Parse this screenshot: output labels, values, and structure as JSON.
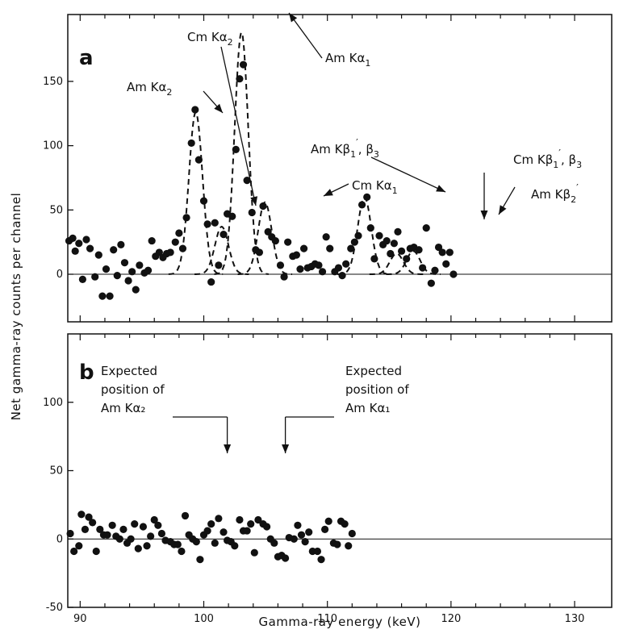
{
  "chart_data": [
    {
      "panel": "a",
      "type": "scatter",
      "xlabel": "Gamma-ray energy (keV)",
      "ylabel": "Net gamma-ray counts per channel",
      "xlim": [
        89,
        133
      ],
      "ylim": [
        -37,
        202
      ],
      "x_ticks": [
        90,
        100,
        110,
        120,
        130
      ],
      "y_ticks": [
        0,
        50,
        100,
        150
      ],
      "points": [
        [
          89.1,
          26
        ],
        [
          89.4,
          28
        ],
        [
          89.6,
          18
        ],
        [
          89.9,
          24
        ],
        [
          90.2,
          -4
        ],
        [
          90.5,
          27
        ],
        [
          90.8,
          20
        ],
        [
          91.2,
          -2
        ],
        [
          91.5,
          15
        ],
        [
          91.8,
          -17
        ],
        [
          92.1,
          4
        ],
        [
          92.4,
          -17
        ],
        [
          92.7,
          19
        ],
        [
          93.0,
          -1
        ],
        [
          93.3,
          23
        ],
        [
          93.6,
          9
        ],
        [
          93.9,
          -5
        ],
        [
          94.2,
          2
        ],
        [
          94.5,
          -12
        ],
        [
          94.8,
          7
        ],
        [
          95.2,
          1
        ],
        [
          95.5,
          3
        ],
        [
          95.8,
          26
        ],
        [
          96.1,
          14
        ],
        [
          96.4,
          17
        ],
        [
          96.7,
          13
        ],
        [
          97.0,
          16
        ],
        [
          97.3,
          17
        ],
        [
          97.7,
          25
        ],
        [
          98.0,
          32
        ],
        [
          98.3,
          20
        ],
        [
          98.6,
          44
        ],
        [
          99.0,
          102
        ],
        [
          99.3,
          128
        ],
        [
          99.6,
          89
        ],
        [
          100.0,
          57
        ],
        [
          100.3,
          39
        ],
        [
          100.6,
          -6
        ],
        [
          100.9,
          40
        ],
        [
          101.2,
          7
        ],
        [
          101.6,
          31
        ],
        [
          101.9,
          47
        ],
        [
          102.3,
          45
        ],
        [
          102.6,
          97
        ],
        [
          102.9,
          152
        ],
        [
          103.2,
          163
        ],
        [
          103.5,
          73
        ],
        [
          103.9,
          48
        ],
        [
          104.2,
          19
        ],
        [
          104.5,
          17
        ],
        [
          104.8,
          53
        ],
        [
          105.2,
          33
        ],
        [
          105.5,
          29
        ],
        [
          105.8,
          26
        ],
        [
          106.2,
          7
        ],
        [
          106.5,
          -2
        ],
        [
          106.8,
          25
        ],
        [
          107.2,
          14
        ],
        [
          107.5,
          15
        ],
        [
          107.8,
          4
        ],
        [
          108.1,
          20
        ],
        [
          108.4,
          5
        ],
        [
          108.7,
          6
        ],
        [
          109.0,
          8
        ],
        [
          109.3,
          7
        ],
        [
          109.6,
          2
        ],
        [
          109.9,
          29
        ],
        [
          110.2,
          20
        ],
        [
          110.6,
          2
        ],
        [
          110.9,
          5
        ],
        [
          111.2,
          -1
        ],
        [
          111.5,
          8
        ],
        [
          111.9,
          20
        ],
        [
          112.2,
          25
        ],
        [
          112.5,
          30
        ],
        [
          112.8,
          54
        ],
        [
          113.2,
          60
        ],
        [
          113.5,
          36
        ],
        [
          113.8,
          12
        ],
        [
          114.2,
          30
        ],
        [
          114.5,
          23
        ],
        [
          114.8,
          26
        ],
        [
          115.1,
          16
        ],
        [
          115.4,
          24
        ],
        [
          115.7,
          33
        ],
        [
          116.0,
          18
        ],
        [
          116.4,
          12
        ],
        [
          116.7,
          20
        ],
        [
          117.0,
          21
        ],
        [
          117.4,
          19
        ],
        [
          117.7,
          5
        ],
        [
          118.0,
          36
        ],
        [
          118.4,
          -7
        ],
        [
          118.7,
          3
        ],
        [
          119.0,
          21
        ],
        [
          119.3,
          17
        ],
        [
          119.6,
          8
        ],
        [
          119.9,
          17
        ],
        [
          120.2,
          0
        ]
      ],
      "dashed_fits": [
        {
          "name": "Am Kα2",
          "center": 99.35,
          "peak": 126
        },
        {
          "name": "Cm Kα2",
          "center": 101.45,
          "peak": 37
        },
        {
          "name": "Am Kα1",
          "center": 103.05,
          "peak": 188
        },
        {
          "name": "Cm Kα1",
          "center": 104.95,
          "peak": 56
        },
        {
          "name": "Am Kβ1′, β3",
          "center": 113.0,
          "peak": 60
        },
        {
          "name": "Cm Kβ1′, β3",
          "center": 115.6,
          "peak": 16
        },
        {
          "name": "Am Kβ2′",
          "center": 116.95,
          "peak": 18
        }
      ]
    },
    {
      "panel": "b",
      "type": "scatter",
      "xlabel": "Gamma-ray energy (keV)",
      "ylabel": "Net gamma-ray counts per channel",
      "xlim": [
        89,
        133
      ],
      "ylim": [
        -50,
        150
      ],
      "x_ticks": [
        90,
        100,
        110,
        120,
        130
      ],
      "y_ticks": [
        -50,
        0,
        50,
        100
      ],
      "points": [
        [
          89.2,
          4
        ],
        [
          89.5,
          -9
        ],
        [
          89.9,
          -5
        ],
        [
          90.1,
          18
        ],
        [
          90.4,
          7
        ],
        [
          90.7,
          16
        ],
        [
          91.0,
          12
        ],
        [
          91.3,
          -9
        ],
        [
          91.6,
          7
        ],
        [
          91.9,
          3
        ],
        [
          92.2,
          3
        ],
        [
          92.6,
          10
        ],
        [
          92.9,
          2
        ],
        [
          93.2,
          0
        ],
        [
          93.5,
          7
        ],
        [
          93.8,
          -3
        ],
        [
          94.1,
          0
        ],
        [
          94.4,
          11
        ],
        [
          94.7,
          -7
        ],
        [
          95.1,
          9
        ],
        [
          95.4,
          -5
        ],
        [
          95.7,
          2
        ],
        [
          96.0,
          14
        ],
        [
          96.3,
          10
        ],
        [
          96.6,
          4
        ],
        [
          96.9,
          -1
        ],
        [
          97.3,
          -2
        ],
        [
          97.6,
          -4
        ],
        [
          97.9,
          -4
        ],
        [
          98.2,
          -9
        ],
        [
          98.5,
          17
        ],
        [
          98.8,
          3
        ],
        [
          99.1,
          0
        ],
        [
          99.4,
          -2
        ],
        [
          99.7,
          -15
        ],
        [
          100.0,
          3
        ],
        [
          100.3,
          6
        ],
        [
          100.6,
          11
        ],
        [
          100.9,
          -3
        ],
        [
          101.2,
          15
        ],
        [
          101.6,
          5
        ],
        [
          101.9,
          -1
        ],
        [
          102.2,
          -2
        ],
        [
          102.5,
          -5
        ],
        [
          102.9,
          14
        ],
        [
          103.2,
          6
        ],
        [
          103.5,
          6
        ],
        [
          103.8,
          11
        ],
        [
          104.1,
          -10
        ],
        [
          104.4,
          14
        ],
        [
          104.8,
          11
        ],
        [
          105.1,
          9
        ],
        [
          105.4,
          0
        ],
        [
          105.7,
          -3
        ],
        [
          106.0,
          -13
        ],
        [
          106.3,
          -12
        ],
        [
          106.6,
          -14
        ],
        [
          106.9,
          1
        ],
        [
          107.3,
          0
        ],
        [
          107.6,
          10
        ],
        [
          107.9,
          3
        ],
        [
          108.2,
          -2
        ],
        [
          108.5,
          5
        ],
        [
          108.8,
          -9
        ],
        [
          109.2,
          -9
        ],
        [
          109.5,
          -15
        ],
        [
          109.8,
          7
        ],
        [
          110.1,
          13
        ],
        [
          110.5,
          -3
        ],
        [
          110.8,
          -4
        ],
        [
          111.1,
          13
        ],
        [
          111.4,
          11
        ],
        [
          111.7,
          -5
        ],
        [
          112.0,
          4
        ]
      ],
      "arrow_positions": [
        101.9,
        106.6
      ]
    }
  ],
  "panel_a": {
    "letter": "a",
    "annotations": [
      {
        "key": "am_ka2",
        "pre": "Am  K",
        "greek": "α",
        "sub": "2",
        "sup": "",
        "post": ""
      },
      {
        "key": "cm_ka2",
        "pre": "Cm  K",
        "greek": "α",
        "sub": "2",
        "sup": "",
        "post": ""
      },
      {
        "key": "am_ka1",
        "pre": "Am  K",
        "greek": "α",
        "sub": "1",
        "sup": "",
        "post": ""
      },
      {
        "key": "cm_ka1",
        "pre": "Cm  K",
        "greek": "α",
        "sub": "1",
        "sup": "",
        "post": ""
      },
      {
        "key": "am_kb1b3",
        "pre": "Am  K",
        "greek": "β",
        "sub": "1",
        "sup": "′",
        "post": ", β",
        "post_sub": "3"
      },
      {
        "key": "cm_kb1b3",
        "pre": "Cm  K",
        "greek": "β",
        "sub": "1",
        "sup": "′",
        "post": ", β",
        "post_sub": "3"
      },
      {
        "key": "am_kb2",
        "pre": "Am  K",
        "greek": "β",
        "sub": "2",
        "sup": "′",
        "post": ""
      }
    ]
  },
  "panel_b": {
    "letter": "b",
    "expected_left": [
      "Expected",
      "position of",
      "Am  Kα₂"
    ],
    "expected_right": [
      "Expected",
      "position of",
      "Am  Kα₁"
    ]
  }
}
